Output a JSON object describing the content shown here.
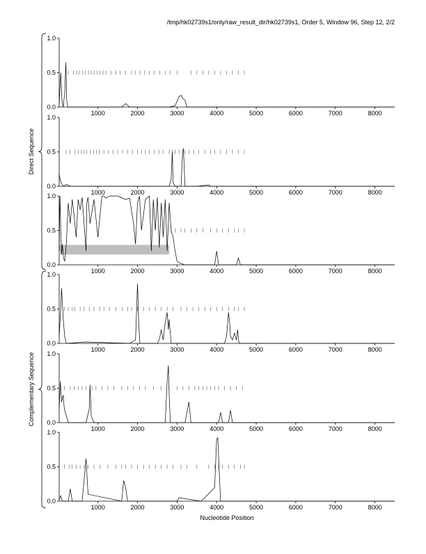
{
  "header": "/tmp/hk02739s1/only/raw_result_dir/hk02739s1, Order 5, Window 96, Step 12, 2/2",
  "group_labels": [
    "Direct Sequence",
    "Complementary Sequence"
  ],
  "xlabel": "Nucleotide Position",
  "chart_data": [
    {
      "type": "line",
      "color": "#000000",
      "xlim": [
        20,
        8500
      ],
      "ylim": [
        0,
        1
      ],
      "xticks": [
        1000,
        2000,
        3000,
        4000,
        5000,
        6000,
        7000,
        8000
      ],
      "yticks": [
        {
          "value": 0,
          "label": "0.0"
        },
        {
          "value": 0.5,
          "label": "0.5"
        },
        {
          "value": 1,
          "label": "1.0"
        }
      ],
      "x": [
        20,
        60,
        90,
        120,
        160,
        190,
        210,
        240,
        300,
        600,
        1000,
        1600,
        1700,
        1760,
        1800,
        2000,
        2800,
        2950,
        3050,
        3100,
        3150,
        3200,
        3250,
        3500,
        4000,
        5000,
        6000,
        7000,
        8000,
        8500
      ],
      "values": [
        0.05,
        0.5,
        0.1,
        0,
        0.2,
        0.65,
        0.1,
        0,
        0,
        0,
        0,
        0,
        0.05,
        0.02,
        0,
        0,
        0,
        0.02,
        0.15,
        0.17,
        0.12,
        0.1,
        0,
        0,
        0,
        0,
        0,
        0,
        0,
        0
      ],
      "markers": {
        "y": 0.5,
        "x": [
          250,
          380,
          460,
          530,
          610,
          680,
          760,
          830,
          900,
          980,
          1050,
          1130,
          1200,
          1330,
          1450,
          1560,
          1700,
          1850,
          1940,
          2060,
          2180,
          2300,
          2420,
          2560,
          2700,
          2820,
          3000,
          3350,
          3500,
          3650,
          3800,
          3950,
          4100,
          4250,
          4400,
          4550,
          4700
        ]
      }
    },
    {
      "type": "line",
      "color": "#000000",
      "xlim": [
        20,
        8500
      ],
      "ylim": [
        0,
        1
      ],
      "xticks": [
        1000,
        2000,
        3000,
        4000,
        5000,
        6000,
        7000,
        8000
      ],
      "yticks": [
        {
          "value": 0,
          "label": "0.0"
        },
        {
          "value": 0.5,
          "label": "0.5"
        },
        {
          "value": 1,
          "label": "1.0"
        }
      ],
      "x": [
        20,
        50,
        100,
        150,
        200,
        300,
        1000,
        2000,
        2800,
        2850,
        2880,
        2900,
        2950,
        3100,
        3140,
        3160,
        3200,
        3500,
        3800,
        3850,
        4000,
        5000,
        8500
      ],
      "values": [
        0.18,
        0.08,
        0.02,
        0,
        0.03,
        0,
        0,
        0,
        0,
        0.1,
        0.5,
        0.05,
        0,
        0,
        0.5,
        0.55,
        0,
        0,
        0.02,
        0,
        0,
        0,
        0
      ],
      "markers": {
        "y": 0.5,
        "x": [
          200,
          290,
          420,
          500,
          580,
          650,
          720,
          800,
          890,
          960,
          1030,
          1150,
          1260,
          1380,
          1500,
          1620,
          1750,
          1880,
          2000,
          2100,
          2200,
          2300,
          2420,
          2540,
          2650,
          2800,
          2880,
          2950,
          3050,
          3200,
          3300,
          3420,
          3550,
          3700,
          3850,
          3950,
          4100,
          4250,
          4400,
          4550,
          4700
        ]
      }
    },
    {
      "type": "line",
      "color": "#000000",
      "xlim": [
        20,
        8500
      ],
      "ylim": [
        0,
        1
      ],
      "xticks": [
        1000,
        2000,
        3000,
        4000,
        5000,
        6000,
        7000,
        8000
      ],
      "yticks": [
        {
          "value": 0,
          "label": "0.0"
        },
        {
          "value": 0.5,
          "label": "0.5"
        },
        {
          "value": 1,
          "label": "1.0"
        }
      ],
      "x": [
        20,
        40,
        60,
        80,
        100,
        130,
        160,
        200,
        250,
        300,
        350,
        400,
        450,
        500,
        550,
        600,
        650,
        700,
        720,
        750,
        800,
        900,
        1000,
        1100,
        1150,
        1200,
        1300,
        1500,
        1700,
        1800,
        1900,
        1950,
        2000,
        2050,
        2100,
        2200,
        2300,
        2350,
        2400,
        2450,
        2500,
        2550,
        2600,
        2650,
        2700,
        2750,
        2800,
        2850,
        2900,
        2950,
        3000,
        3100,
        3200,
        3500,
        3950,
        4000,
        4050,
        4500,
        4550,
        4600,
        5000,
        8500
      ],
      "values": [
        0.2,
        1.0,
        0.5,
        0.15,
        0.3,
        0.1,
        0.05,
        0.3,
        0.9,
        0.6,
        0.95,
        0.7,
        0.4,
        0.95,
        0.8,
        0.98,
        0.6,
        0.2,
        0.9,
        0.98,
        0.6,
        0.95,
        0.4,
        1.0,
        1.0,
        0.97,
        1.0,
        1.0,
        0.95,
        0.97,
        0.6,
        0.3,
        0.9,
        1.0,
        0.5,
        0.95,
        1.0,
        0.2,
        0.95,
        0.5,
        0.98,
        0.25,
        0.9,
        0.4,
        0.95,
        0.2,
        0.9,
        0.5,
        0.4,
        0.2,
        0.05,
        0.02,
        0,
        0,
        0,
        0.2,
        0,
        0,
        0.1,
        0,
        0,
        0
      ],
      "band": {
        "x": [
          20,
          2800
        ],
        "y": [
          0.15,
          0.29
        ],
        "color": "#bfbfbf"
      },
      "markers": {
        "y": 0.5,
        "x": [
          2850,
          2950,
          3100,
          3200,
          3350,
          3500,
          3650,
          3850,
          4000,
          4150,
          4300,
          4450,
          4550,
          4700
        ]
      }
    },
    {
      "type": "line",
      "color": "#000000",
      "xlim": [
        20,
        8500
      ],
      "ylim": [
        0,
        1
      ],
      "xticks": [
        1000,
        2000,
        3000,
        4000,
        5000,
        6000,
        7000,
        8000
      ],
      "yticks": [
        {
          "value": 0,
          "label": "0.0"
        },
        {
          "value": 0.5,
          "label": "0.5"
        },
        {
          "value": 1,
          "label": "1.0"
        }
      ],
      "x": [
        20,
        60,
        80,
        100,
        130,
        160,
        200,
        700,
        1800,
        1950,
        2000,
        2030,
        2060,
        2500,
        2550,
        2600,
        2650,
        2700,
        2750,
        2780,
        2800,
        2850,
        4200,
        4250,
        4300,
        4330,
        4350,
        4400,
        4450,
        4500,
        4530,
        4560,
        4600,
        8500
      ],
      "values": [
        0.1,
        0.5,
        0.8,
        0.6,
        0.3,
        0.1,
        0,
        0.02,
        0,
        0.05,
        0.87,
        0.3,
        0,
        0,
        0.05,
        0.2,
        0.05,
        0.3,
        0.45,
        0.2,
        0.35,
        0,
        0,
        0.1,
        0.45,
        0.3,
        0.1,
        0.05,
        0.15,
        0.05,
        0.2,
        0.02,
        0,
        0
      ],
      "markers": {
        "y": 0.5,
        "x": [
          150,
          250,
          350,
          420,
          550,
          650,
          780,
          900,
          1050,
          1150,
          1300,
          1450,
          1620,
          1750,
          1850,
          2000,
          2150,
          2300,
          2450,
          2600,
          2750,
          2900,
          3100,
          3250,
          3400,
          3550,
          3700,
          3850,
          4000,
          4150,
          4300,
          4450,
          4550,
          4700
        ]
      }
    },
    {
      "type": "line",
      "color": "#000000",
      "xlim": [
        20,
        8500
      ],
      "ylim": [
        0,
        1
      ],
      "xticks": [
        1000,
        2000,
        3000,
        4000,
        5000,
        6000,
        7000,
        8000
      ],
      "yticks": [
        {
          "value": 0,
          "label": "0.0"
        },
        {
          "value": 0.5,
          "label": "0.5"
        },
        {
          "value": 1,
          "label": "1.0"
        }
      ],
      "x": [
        20,
        50,
        80,
        120,
        150,
        200,
        250,
        700,
        780,
        800,
        830,
        900,
        2000,
        2700,
        2750,
        2780,
        2800,
        2830,
        3200,
        3250,
        3300,
        3350,
        4050,
        4100,
        4150,
        4300,
        4350,
        4400,
        8500
      ],
      "values": [
        0.2,
        0.6,
        0.3,
        0.4,
        0.2,
        0.1,
        0,
        0,
        0.2,
        0.55,
        0.1,
        0,
        0,
        0,
        0.6,
        0.83,
        0.4,
        0,
        0,
        0.15,
        0.3,
        0,
        0,
        0.15,
        0,
        0,
        0.18,
        0,
        0
      ],
      "markers": {
        "y": 0.5,
        "x": [
          150,
          300,
          400,
          500,
          600,
          700,
          850,
          950,
          1100,
          1250,
          1400,
          1600,
          1750,
          1900,
          2050,
          2200,
          2400,
          2600,
          2800,
          3000,
          3150,
          3300,
          3450,
          3550,
          3650,
          3750,
          3850,
          3950,
          4050,
          4200,
          4350,
          4500,
          4650
        ]
      }
    },
    {
      "type": "line",
      "color": "#000000",
      "xlim": [
        20,
        8500
      ],
      "ylim": [
        0,
        1
      ],
      "xticks": [
        1000,
        2000,
        3000,
        4000,
        5000,
        6000,
        7000,
        8000
      ],
      "yticks": [
        {
          "value": 0,
          "label": "0.0"
        },
        {
          "value": 0.5,
          "label": "0.5"
        },
        {
          "value": 1,
          "label": "1.0"
        }
      ],
      "x": [
        20,
        60,
        100,
        250,
        300,
        350,
        600,
        650,
        700,
        750,
        1600,
        1650,
        1700,
        1750,
        3000,
        3050,
        3600,
        3700,
        3950,
        4000,
        4030,
        4060,
        4100,
        8500
      ],
      "values": [
        0.02,
        0.08,
        0,
        0,
        0.18,
        0,
        0,
        0.3,
        0.62,
        0.1,
        0,
        0.3,
        0.2,
        0,
        0,
        0.05,
        0,
        0.05,
        0.2,
        0.9,
        0.92,
        0.5,
        0,
        0
      ],
      "markers": {
        "y": 0.5,
        "x": [
          150,
          270,
          350,
          450,
          550,
          650,
          750,
          900,
          1050,
          1250,
          1450,
          1600,
          1700,
          1850,
          2000,
          2150,
          2300,
          2450,
          2600,
          2750,
          2900,
          3100,
          3250,
          3500,
          3800,
          3950,
          4050,
          4150,
          4300,
          4450,
          4600,
          4700
        ]
      }
    }
  ]
}
